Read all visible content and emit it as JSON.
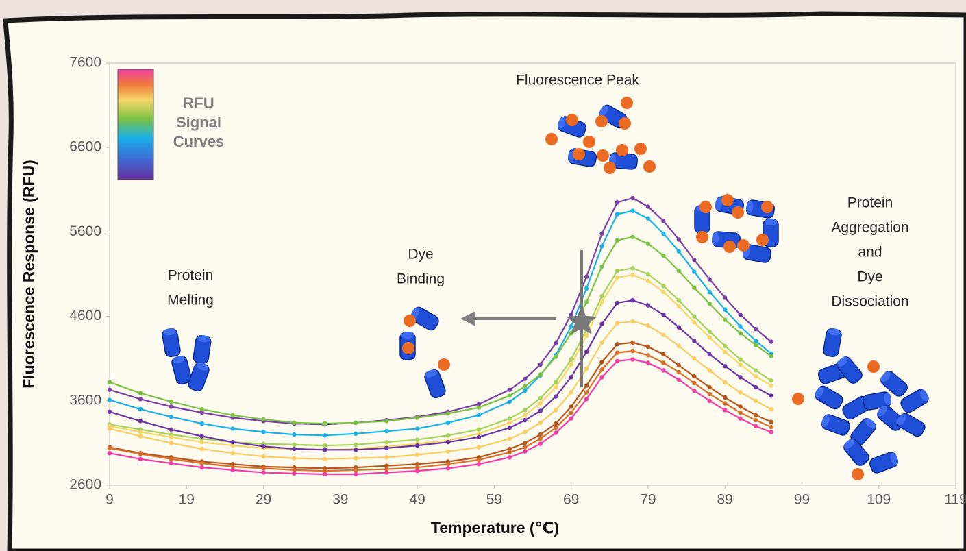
{
  "chart_data": {
    "type": "line",
    "xlabel": "Temperature (℃)",
    "ylabel": "Fluorescence Response (RFU)",
    "xlim": [
      9,
      119
    ],
    "ylim": [
      2600,
      7600
    ],
    "xticks": [
      9,
      19,
      29,
      39,
      49,
      59,
      69,
      79,
      89,
      99,
      109,
      119
    ],
    "yticks": [
      2600,
      3600,
      4600,
      5600,
      6600,
      7600
    ],
    "grid": false,
    "markers": true,
    "colorbar_label": [
      "RFU",
      "Signal",
      "Curves"
    ],
    "annotations": [
      [
        "Fluorescence Peak"
      ],
      [
        "Protein",
        "Melting"
      ],
      [
        "Dye",
        "Binding"
      ],
      [
        "Protein",
        "Aggregation",
        "and",
        "Dye",
        "Dissociation"
      ]
    ],
    "x": [
      9,
      13,
      17,
      21,
      25,
      29,
      33,
      37,
      41,
      45,
      49,
      53,
      57,
      61,
      63,
      65,
      67,
      69,
      71,
      73,
      75,
      77,
      79,
      81,
      83,
      85,
      87,
      89,
      91,
      93,
      95
    ],
    "series": [
      {
        "color": "#7b3fa8",
        "values": [
          3730,
          3620,
          3530,
          3460,
          3400,
          3360,
          3330,
          3320,
          3340,
          3370,
          3410,
          3470,
          3560,
          3730,
          3860,
          4030,
          4280,
          4620,
          5070,
          5580,
          5950,
          6000,
          5900,
          5730,
          5510,
          5270,
          5040,
          4820,
          4620,
          4450,
          4300
        ]
      },
      {
        "color": "#1ab0e8",
        "values": [
          3610,
          3500,
          3410,
          3330,
          3270,
          3230,
          3200,
          3190,
          3210,
          3240,
          3270,
          3340,
          3430,
          3590,
          3720,
          3900,
          4140,
          4480,
          4930,
          5430,
          5810,
          5850,
          5760,
          5580,
          5370,
          5130,
          4890,
          4680,
          4480,
          4310,
          4160
        ]
      },
      {
        "color": "#7cc242",
        "values": [
          3820,
          3690,
          3590,
          3500,
          3430,
          3380,
          3340,
          3330,
          3340,
          3360,
          3400,
          3450,
          3520,
          3660,
          3770,
          3910,
          4120,
          4400,
          4770,
          5190,
          5500,
          5540,
          5460,
          5320,
          5140,
          4940,
          4750,
          4560,
          4400,
          4260,
          4130
        ]
      },
      {
        "color": "#a6d25a",
        "values": [
          3320,
          3260,
          3200,
          3150,
          3110,
          3090,
          3080,
          3070,
          3080,
          3110,
          3140,
          3190,
          3260,
          3390,
          3490,
          3630,
          3820,
          4090,
          4440,
          4840,
          5140,
          5170,
          5100,
          4960,
          4790,
          4600,
          4420,
          4250,
          4090,
          3960,
          3840
        ]
      },
      {
        "color": "#f6d667",
        "values": [
          3300,
          3230,
          3170,
          3110,
          3070,
          3040,
          3030,
          3020,
          3030,
          3060,
          3090,
          3130,
          3210,
          3340,
          3430,
          3570,
          3760,
          4030,
          4370,
          4770,
          5060,
          5090,
          5020,
          4890,
          4720,
          4530,
          4350,
          4180,
          4030,
          3890,
          3780
        ]
      },
      {
        "color": "#6a35a3",
        "values": [
          3470,
          3360,
          3260,
          3180,
          3110,
          3060,
          3030,
          3020,
          3020,
          3040,
          3070,
          3110,
          3170,
          3280,
          3370,
          3480,
          3650,
          3880,
          4180,
          4510,
          4760,
          4790,
          4730,
          4620,
          4470,
          4310,
          4150,
          4010,
          3880,
          3760,
          3660
        ]
      },
      {
        "color": "#f9cd63",
        "values": [
          3270,
          3180,
          3100,
          3030,
          2980,
          2940,
          2920,
          2910,
          2920,
          2930,
          2960,
          3000,
          3050,
          3150,
          3230,
          3340,
          3490,
          3700,
          3980,
          4290,
          4520,
          4540,
          4490,
          4380,
          4250,
          4100,
          3960,
          3820,
          3700,
          3600,
          3500
        ]
      },
      {
        "color": "#b8561b",
        "values": [
          3050,
          2980,
          2930,
          2880,
          2850,
          2820,
          2810,
          2800,
          2810,
          2830,
          2850,
          2880,
          2930,
          3030,
          3100,
          3200,
          3330,
          3530,
          3780,
          4060,
          4270,
          4290,
          4240,
          4150,
          4020,
          3890,
          3760,
          3640,
          3530,
          3430,
          3350
        ]
      },
      {
        "color": "#d6702a",
        "values": [
          3040,
          2970,
          2910,
          2860,
          2820,
          2800,
          2780,
          2770,
          2780,
          2790,
          2810,
          2850,
          2900,
          2990,
          3050,
          3150,
          3280,
          3460,
          3700,
          3970,
          4170,
          4190,
          4140,
          4050,
          3940,
          3810,
          3680,
          3570,
          3460,
          3370,
          3290
        ]
      },
      {
        "color": "#f03ca4",
        "values": [
          2980,
          2910,
          2860,
          2810,
          2780,
          2750,
          2740,
          2730,
          2730,
          2750,
          2770,
          2800,
          2850,
          2930,
          3000,
          3090,
          3220,
          3390,
          3620,
          3880,
          4070,
          4090,
          4050,
          3960,
          3850,
          3720,
          3600,
          3490,
          3390,
          3300,
          3230
        ]
      }
    ]
  }
}
